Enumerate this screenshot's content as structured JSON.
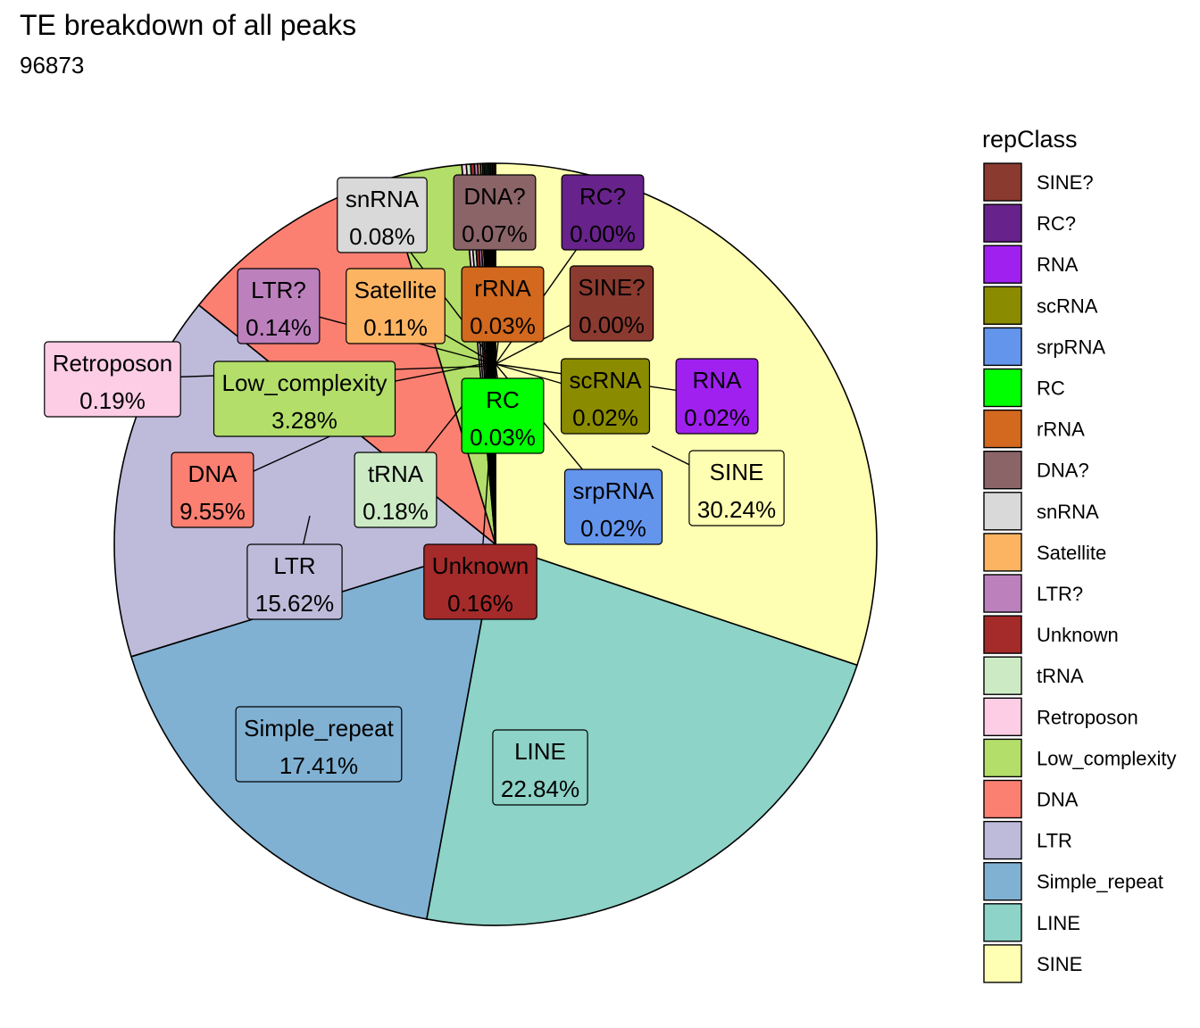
{
  "chart_data": {
    "type": "pie",
    "title": "TE breakdown of all peaks",
    "subtitle": "96873",
    "legend_title": "repClass",
    "legend_placement": "right",
    "slices": [
      {
        "name": "SINE",
        "value": 30.24,
        "label_text": "30.24%",
        "color": "#FFFFB3",
        "label_text_color": "#000000"
      },
      {
        "name": "LINE",
        "value": 22.84,
        "label_text": "22.84%",
        "color": "#8DD3C7",
        "label_text_color": "#000000"
      },
      {
        "name": "Simple_repeat",
        "value": 17.41,
        "label_text": "17.41%",
        "color": "#80B1D3",
        "label_text_color": "#000000"
      },
      {
        "name": "LTR",
        "value": 15.62,
        "label_text": "15.62%",
        "color": "#BEBADA",
        "label_text_color": "#000000"
      },
      {
        "name": "DNA",
        "value": 9.55,
        "label_text": "9.55%",
        "color": "#FB8072",
        "label_text_color": "#000000"
      },
      {
        "name": "Low_complexity",
        "value": 3.28,
        "label_text": "3.28%",
        "color": "#B3DE69",
        "label_text_color": "#000000"
      },
      {
        "name": "Retroposon",
        "value": 0.19,
        "label_text": "0.19%",
        "color": "#FCCDE5",
        "label_text_color": "#000000"
      },
      {
        "name": "tRNA",
        "value": 0.18,
        "label_text": "0.18%",
        "color": "#CCEBC5",
        "label_text_color": "#000000"
      },
      {
        "name": "Unknown",
        "value": 0.16,
        "label_text": "0.16%",
        "color": "#A52A2A",
        "label_text_color": "#000000"
      },
      {
        "name": "LTR?",
        "value": 0.14,
        "label_text": "0.14%",
        "color": "#BC80BD",
        "label_text_color": "#000000"
      },
      {
        "name": "Satellite",
        "value": 0.11,
        "label_text": "0.11%",
        "color": "#FDB462",
        "label_text_color": "#000000"
      },
      {
        "name": "snRNA",
        "value": 0.08,
        "label_text": "0.08%",
        "color": "#D9D9D9",
        "label_text_color": "#000000"
      },
      {
        "name": "DNA?",
        "value": 0.07,
        "label_text": "0.07%",
        "color": "#8B6468",
        "label_text_color": "#000000"
      },
      {
        "name": "rRNA",
        "value": 0.03,
        "label_text": "0.03%",
        "color": "#D2691E",
        "label_text_color": "#000000"
      },
      {
        "name": "RC",
        "value": 0.03,
        "label_text": "0.03%",
        "color": "#00FF00",
        "label_text_color": "#000000"
      },
      {
        "name": "srpRNA",
        "value": 0.02,
        "label_text": "0.02%",
        "color": "#6495ED",
        "label_text_color": "#000000"
      },
      {
        "name": "scRNA",
        "value": 0.02,
        "label_text": "0.02%",
        "color": "#8B8B00",
        "label_text_color": "#000000"
      },
      {
        "name": "RNA",
        "value": 0.02,
        "label_text": "0.02%",
        "color": "#A020F0",
        "label_text_color": "#000000"
      },
      {
        "name": "RC?",
        "value": 0.0,
        "label_text": "0.00%",
        "color": "#68228B",
        "label_text_color": "#000000"
      },
      {
        "name": "SINE?",
        "value": 0.0,
        "label_text": "0.00%",
        "color": "#8B3A2F",
        "label_text_color": "#000000"
      }
    ],
    "legend_order": [
      "SINE?",
      "RC?",
      "RNA",
      "scRNA",
      "srpRNA",
      "RC",
      "rRNA",
      "DNA?",
      "snRNA",
      "Satellite",
      "LTR?",
      "Unknown",
      "tRNA",
      "Retroposon",
      "Low_complexity",
      "DNA",
      "LTR",
      "Simple_repeat",
      "LINE",
      "SINE"
    ]
  }
}
